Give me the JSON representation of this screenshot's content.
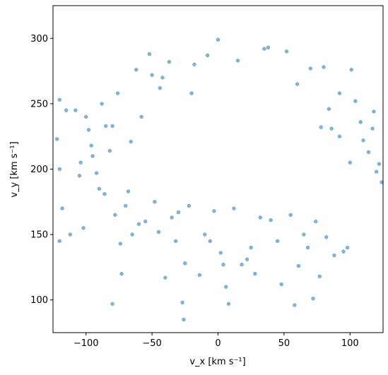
{
  "chart_data": {
    "type": "scatter",
    "xlabel": "v_x [km s⁻¹]",
    "ylabel": "v_y [km s⁻¹]",
    "xlim": [
      -125,
      125
    ],
    "ylim": [
      75,
      325
    ],
    "xticks": [
      -100,
      -50,
      0,
      50,
      100
    ],
    "yticks": [
      100,
      150,
      200,
      250,
      300
    ],
    "xtick_labels": [
      "−100",
      "−50",
      "0",
      "50",
      "100"
    ],
    "ytick_labels": [
      "100",
      "150",
      "200",
      "250",
      "300"
    ],
    "grid": false,
    "marker_color": "#1f77b4",
    "marker_alpha": 0.55,
    "points": [
      [
        -120,
        253
      ],
      [
        -122,
        223
      ],
      [
        -120,
        200
      ],
      [
        -118,
        170
      ],
      [
        -120,
        145
      ],
      [
        -115,
        245
      ],
      [
        -112,
        150
      ],
      [
        -105,
        195
      ],
      [
        -102,
        155
      ],
      [
        -100,
        240
      ],
      [
        -98,
        230
      ],
      [
        -96,
        218
      ],
      [
        -92,
        197
      ],
      [
        -90,
        185
      ],
      [
        -88,
        250
      ],
      [
        -85,
        233
      ],
      [
        -82,
        214
      ],
      [
        -80,
        97
      ],
      [
        -78,
        165
      ],
      [
        -76,
        258
      ],
      [
        -74,
        143
      ],
      [
        -73,
        120
      ],
      [
        -70,
        172
      ],
      [
        -68,
        183
      ],
      [
        -65,
        150
      ],
      [
        -62,
        276
      ],
      [
        -60,
        158
      ],
      [
        -55,
        160
      ],
      [
        -52,
        288
      ],
      [
        -50,
        272
      ],
      [
        -48,
        175
      ],
      [
        -45,
        152
      ],
      [
        -42,
        270
      ],
      [
        -40,
        117
      ],
      [
        -37,
        282
      ],
      [
        -35,
        163
      ],
      [
        -32,
        145
      ],
      [
        -30,
        167
      ],
      [
        -27,
        98
      ],
      [
        -26,
        85
      ],
      [
        -25,
        128
      ],
      [
        -22,
        172
      ],
      [
        -18,
        280
      ],
      [
        -14,
        119
      ],
      [
        -10,
        150
      ],
      [
        -8,
        287
      ],
      [
        -6,
        145
      ],
      [
        -3,
        168
      ],
      [
        0,
        299
      ],
      [
        2,
        136
      ],
      [
        4,
        127
      ],
      [
        6,
        110
      ],
      [
        8,
        97
      ],
      [
        12,
        170
      ],
      [
        15,
        283
      ],
      [
        18,
        127
      ],
      [
        22,
        131
      ],
      [
        25,
        140
      ],
      [
        28,
        120
      ],
      [
        32,
        163
      ],
      [
        35,
        292
      ],
      [
        38,
        293
      ],
      [
        40,
        161
      ],
      [
        45,
        145
      ],
      [
        48,
        112
      ],
      [
        52,
        290
      ],
      [
        55,
        165
      ],
      [
        58,
        96
      ],
      [
        61,
        126
      ],
      [
        65,
        150
      ],
      [
        68,
        140
      ],
      [
        70,
        277
      ],
      [
        72,
        101
      ],
      [
        74,
        160
      ],
      [
        77,
        118
      ],
      [
        80,
        278
      ],
      [
        82,
        148
      ],
      [
        86,
        231
      ],
      [
        88,
        134
      ],
      [
        92,
        225
      ],
      [
        95,
        137
      ],
      [
        98,
        140
      ],
      [
        100,
        205
      ],
      [
        104,
        252
      ],
      [
        108,
        236
      ],
      [
        110,
        222
      ],
      [
        114,
        213
      ],
      [
        117,
        231
      ],
      [
        118,
        244
      ],
      [
        120,
        198
      ],
      [
        122,
        204
      ],
      [
        124,
        190
      ],
      [
        101,
        276
      ],
      [
        92,
        258
      ],
      [
        84,
        246
      ],
      [
        78,
        232
      ],
      [
        -108,
        245
      ],
      [
        -104,
        205
      ],
      [
        -95,
        210
      ],
      [
        -86,
        181
      ],
      [
        -80,
        233
      ],
      [
        -66,
        221
      ],
      [
        -58,
        240
      ],
      [
        -44,
        262
      ],
      [
        -20,
        258
      ],
      [
        60,
        265
      ]
    ]
  }
}
